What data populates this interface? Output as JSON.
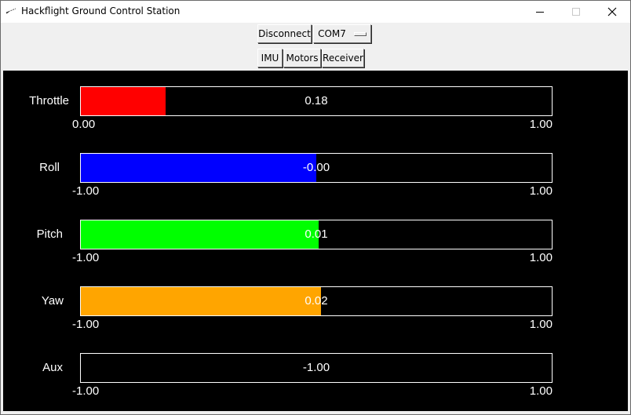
{
  "window": {
    "title": "Hackflight Ground Control Station",
    "icons": {
      "app": "feather-icon",
      "minimize": "minimize-icon",
      "maximize": "maximize-icon",
      "close": "close-icon"
    }
  },
  "toolbar": {
    "connect_label": "Disconnect",
    "port": {
      "selected": "COM7"
    },
    "tabs": [
      {
        "label": "IMU"
      },
      {
        "label": "Motors"
      },
      {
        "label": "Receiver"
      }
    ]
  },
  "channels": [
    {
      "name": "Throttle",
      "value": "0.18",
      "fraction": 0.18,
      "color": "#ff0000",
      "min": "0.00",
      "max": "1.00"
    },
    {
      "name": "Roll",
      "value": "-0.00",
      "fraction": 0.5,
      "color": "#0000ff",
      "min": "-1.00",
      "max": "1.00"
    },
    {
      "name": "Pitch",
      "value": "0.01",
      "fraction": 0.505,
      "color": "#00ff00",
      "min": "-1.00",
      "max": "1.00"
    },
    {
      "name": "Yaw",
      "value": "0.02",
      "fraction": 0.51,
      "color": "#ffa500",
      "min": "-1.00",
      "max": "1.00"
    },
    {
      "name": "Aux",
      "value": "-1.00",
      "fraction": 0.0,
      "color": "#000000",
      "min": "-1.00",
      "max": "1.00"
    }
  ]
}
